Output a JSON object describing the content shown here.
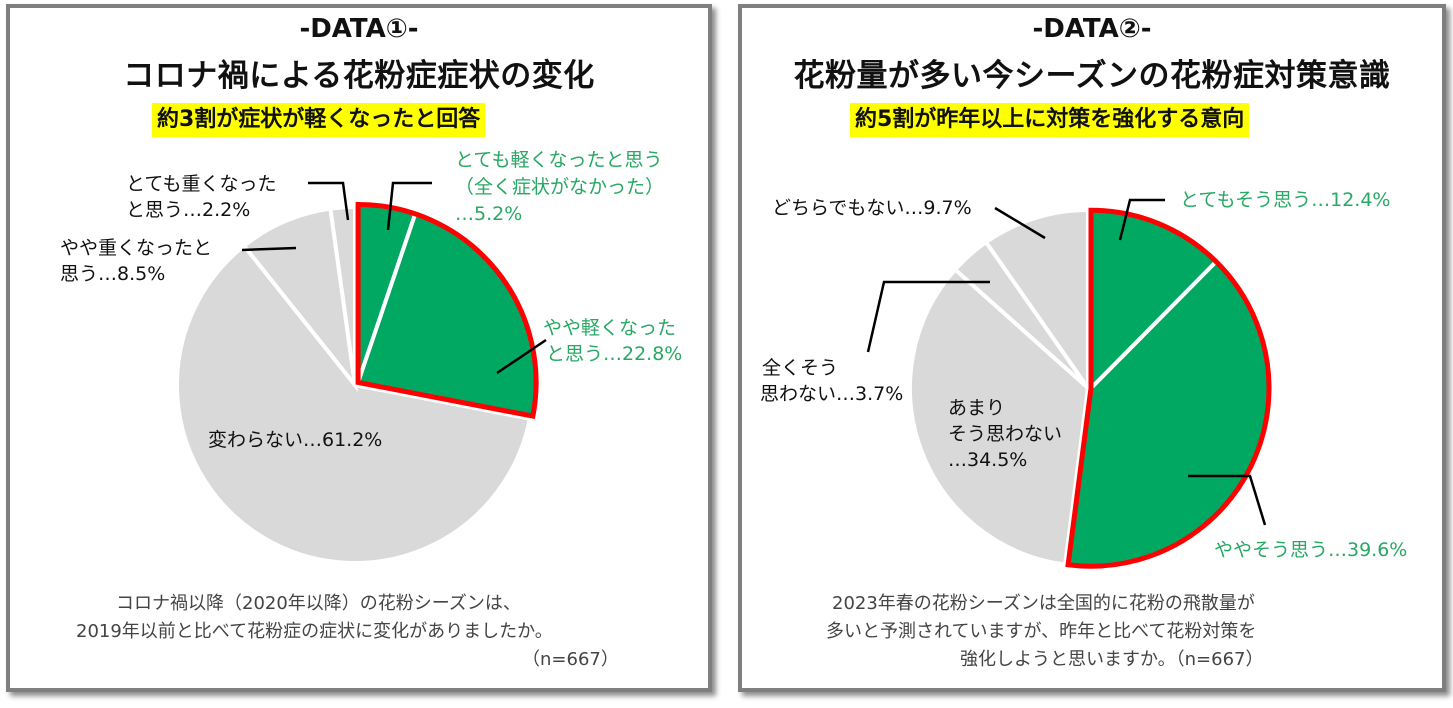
{
  "panels": [
    {
      "tag": "-DATA①-",
      "title": "コロナ禍による花粉症症状の変化",
      "highlight": "約3割が症状が軽くなったと回答",
      "note_line1": "コロナ禍以降（2020年以降）の花粉シーズンは、",
      "note_line2": "2019年以前と比べて花粉症の症状に変化がありましたか。",
      "note_line3": "（n=667）",
      "labels": {
        "very_lighter_1": "とても軽くなったと思う",
        "very_lighter_2": "（全く症状がなかった）",
        "very_lighter_3": "…5.2%",
        "bit_lighter_1": "やや軽くなった",
        "bit_lighter_2": "と思う…22.8%",
        "unchanged": "変わらない…61.2%",
        "bit_heavier_1": "やや重くなったと",
        "bit_heavier_2": "思う…8.5%",
        "very_heavier_1": "とても重くなった",
        "very_heavier_2": "と思う…2.2%"
      }
    },
    {
      "tag": "-DATA②-",
      "title": "花粉量が多い今シーズンの花粉症対策意識",
      "highlight": "約5割が昨年以上に対策を強化する意向",
      "note_line1": "2023年春の花粉シーズンは全国的に花粉の飛散量が",
      "note_line2": "多いと予測されていますが、昨年と比べて花粉対策を",
      "note_line3": "強化しようと思いますか。（n=667）",
      "labels": {
        "strongly_agree": "とてもそう思う…12.4%",
        "agree": "ややそう思う…39.6%",
        "disagree_1": "あまり",
        "disagree_2": "そう思わない",
        "disagree_3": "…34.5%",
        "strongly_disagree_1": "全くそう",
        "strongly_disagree_2": "思わない…3.7%",
        "neutral": "どちらでもない…9.7%"
      }
    }
  ],
  "colors": {
    "green": "#00a862",
    "gray": "#d9d9d9",
    "red": "#ff0000",
    "label_green": "#27a863",
    "highlight": "#ffff00"
  },
  "chart_data": [
    {
      "type": "pie",
      "title": "コロナ禍による花粉症症状の変化",
      "categories": [
        "とても軽くなったと思う（全く症状がなかった）",
        "やや軽くなったと思う",
        "変わらない",
        "やや重くなったと思う",
        "とても重くなったと思う"
      ],
      "values": [
        5.2,
        22.8,
        61.2,
        8.5,
        2.2
      ],
      "colors": [
        "#00a862",
        "#00a862",
        "#d9d9d9",
        "#d9d9d9",
        "#d9d9d9"
      ],
      "exploded": [
        0,
        1
      ],
      "n": 667
    },
    {
      "type": "pie",
      "title": "花粉量が多い今シーズンの花粉症対策意識",
      "categories": [
        "とてもそう思う",
        "ややそう思う",
        "あまりそう思わない",
        "全くそう思わない",
        "どちらでもない"
      ],
      "values": [
        12.4,
        39.6,
        34.5,
        3.7,
        9.7
      ],
      "colors": [
        "#00a862",
        "#00a862",
        "#d9d9d9",
        "#d9d9d9",
        "#d9d9d9"
      ],
      "exploded": [
        0,
        1
      ],
      "n": 667
    }
  ]
}
